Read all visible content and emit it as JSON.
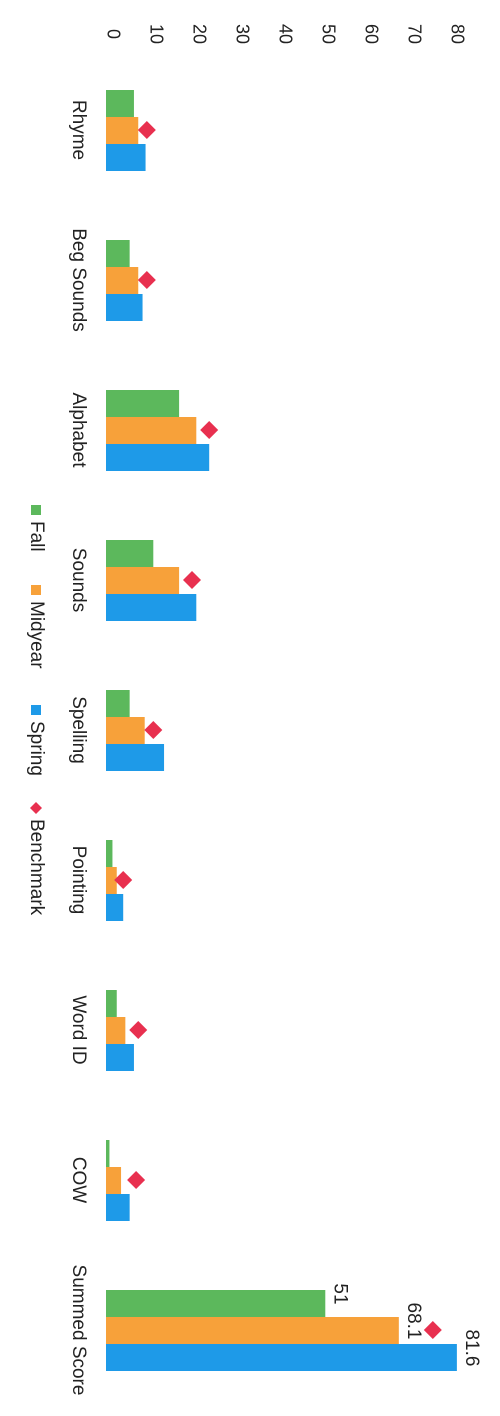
{
  "chart_data": {
    "type": "bar",
    "orientation": "rotated-90-clockwise",
    "categories": [
      "Rhyme",
      "Beg Sounds",
      "Alphabet",
      "Sounds",
      "Spelling",
      "Pointing",
      "Word ID",
      "COW",
      "Summed Score"
    ],
    "series": [
      {
        "name": "Fall",
        "color": "#5cb85c",
        "values": [
          6.5,
          5.5,
          17,
          11,
          5.5,
          1.5,
          2.5,
          0.8,
          51
        ]
      },
      {
        "name": "Midyear",
        "color": "#f7a13a",
        "values": [
          7.5,
          7.5,
          21,
          17,
          9,
          2.5,
          4.5,
          3.5,
          68.1
        ]
      },
      {
        "name": "Spring",
        "color": "#1e9ae8",
        "values": [
          9.2,
          8.5,
          24,
          21,
          13.5,
          4,
          6.5,
          5.5,
          81.6
        ]
      }
    ],
    "benchmark": {
      "name": "Benchmark",
      "color": "#e8304f",
      "marker": "diamond",
      "values": [
        9.5,
        9.5,
        24,
        20,
        11,
        4,
        7.5,
        7,
        76
      ]
    },
    "data_labels": [
      {
        "category": "Summed Score",
        "series": "Fall",
        "text": "51"
      },
      {
        "category": "Summed Score",
        "series": "Midyear",
        "text": "68.1"
      },
      {
        "category": "Summed Score",
        "series": "Spring",
        "text": "81.6"
      }
    ],
    "ylim": [
      0,
      80
    ],
    "yticks": [
      0,
      10,
      20,
      30,
      40,
      50,
      60,
      70,
      80
    ],
    "grid": false,
    "legend_position": "bottom",
    "title": "",
    "xlabel": "",
    "ylabel": ""
  }
}
